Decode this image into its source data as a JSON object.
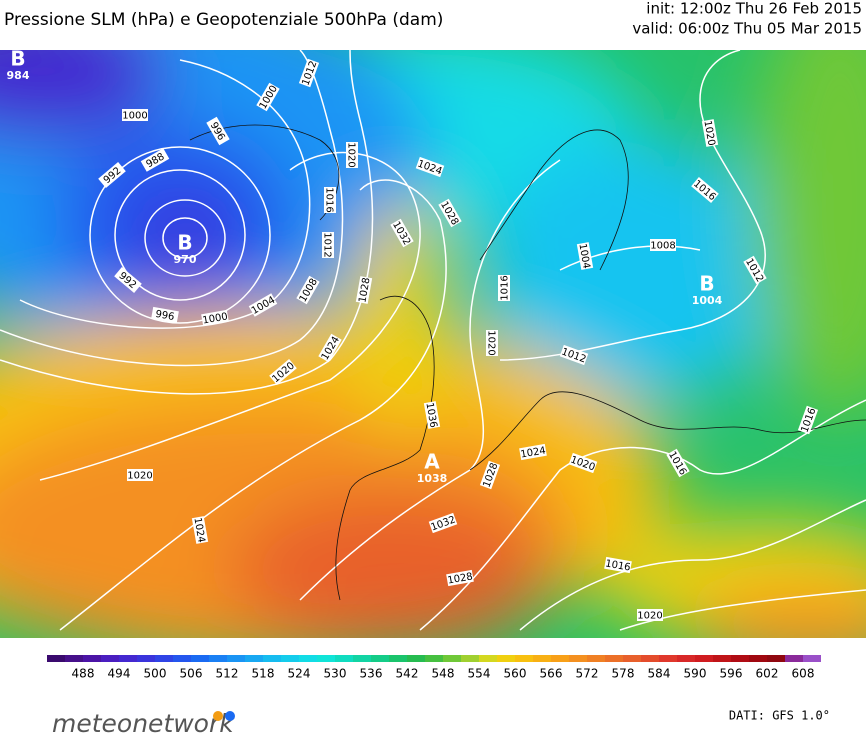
{
  "header": {
    "title": "Pressione SLM (hPa) e Geopotenziale 500hPa (dam)",
    "init": "init: 12:00z Thu 26 Feb 2015",
    "valid": "valid: 06:00z Thu 05 Mar 2015"
  },
  "map": {
    "isobar_labels": [
      "1012",
      "1000",
      "1000",
      "996",
      "988",
      "992",
      "1020",
      "1024",
      "1016",
      "1032",
      "1028",
      "1012",
      "1008",
      "1004",
      "1000",
      "996",
      "992",
      "1028",
      "1024",
      "1020",
      "1020",
      "1024",
      "1036",
      "1028",
      "1032",
      "1028",
      "1024",
      "1020",
      "1016",
      "1020",
      "1012",
      "1008",
      "1004",
      "1020",
      "1016",
      "1012",
      "1016",
      "1016",
      "1016",
      "1020"
    ],
    "centers": [
      {
        "letter": "B",
        "value": "984"
      },
      {
        "letter": "B",
        "value": "970"
      },
      {
        "letter": "A",
        "value": "1038"
      },
      {
        "letter": "B",
        "value": "1004"
      }
    ]
  },
  "colorbar": {
    "labels": [
      "488",
      "494",
      "500",
      "506",
      "512",
      "518",
      "524",
      "530",
      "536",
      "542",
      "548",
      "554",
      "560",
      "566",
      "572",
      "578",
      "584",
      "590",
      "596",
      "602",
      "608"
    ],
    "colors": [
      "#3a0a6e",
      "#46108a",
      "#4b14a6",
      "#4a1ec0",
      "#4428d0",
      "#3a34dc",
      "#2f44e6",
      "#2456ee",
      "#1a6af2",
      "#1a80f4",
      "#1a94f4",
      "#18a8f2",
      "#16bcf0",
      "#14ccec",
      "#12dce6",
      "#10e4d8",
      "#10dcc0",
      "#12d4a4",
      "#14cc88",
      "#1ac46c",
      "#26bc50",
      "#46c040",
      "#70c838",
      "#a0d030",
      "#d4d820",
      "#f0d010",
      "#f8c010",
      "#f8b014",
      "#f8a018",
      "#f49020",
      "#f08024",
      "#ec7028",
      "#e8602c",
      "#e44c2c",
      "#e0382c",
      "#d82828",
      "#d01c20",
      "#c01418",
      "#b00c14",
      "#a00810",
      "#900810",
      "#8a2a9a",
      "#9a50c8"
    ]
  },
  "footer": {
    "brand": "meteonetwork",
    "source": "DATI: GFS 1.0°"
  }
}
